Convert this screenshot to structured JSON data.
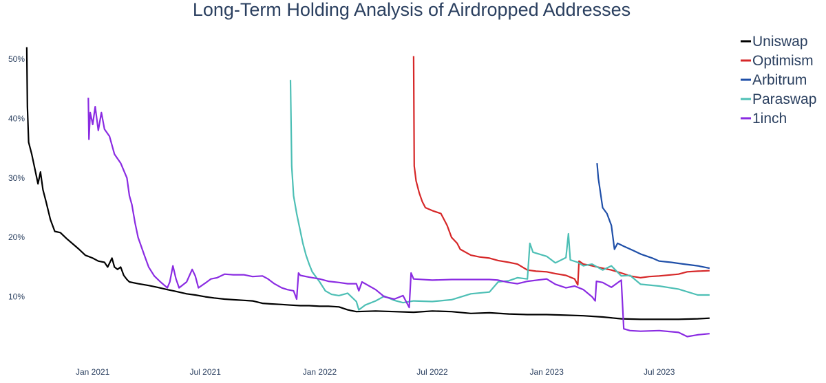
{
  "chart_data": {
    "type": "line",
    "title": "Long-Term Holding Analysis of Airdropped Addresses",
    "xlabel": "",
    "ylabel": "",
    "x_range": [
      "2020-09-16",
      "2023-10-20"
    ],
    "y_range": [
      0,
      53
    ],
    "y_unit": "%",
    "y_ticks": [
      "10%",
      "20%",
      "30%",
      "40%",
      "50%"
    ],
    "x_ticks": [
      "Jan 2021",
      "Jul 2021",
      "Jan 2022",
      "Jul 2022",
      "Jan 2023",
      "Jul 2023"
    ],
    "grid": false,
    "legend_position": "top-right",
    "series": [
      {
        "name": "Uniswap",
        "color": "#000000",
        "points": [
          [
            "2020-09-17",
            52
          ],
          [
            "2020-09-18",
            42
          ],
          [
            "2020-09-20",
            36
          ],
          [
            "2020-09-25",
            34
          ],
          [
            "2020-10-01",
            31
          ],
          [
            "2020-10-05",
            29
          ],
          [
            "2020-10-09",
            31
          ],
          [
            "2020-10-13",
            28
          ],
          [
            "2020-10-18",
            26
          ],
          [
            "2020-10-25",
            23
          ],
          [
            "2020-11-01",
            21
          ],
          [
            "2020-11-10",
            20.8
          ],
          [
            "2020-11-20",
            19.8
          ],
          [
            "2020-12-01",
            18.8
          ],
          [
            "2020-12-10",
            18
          ],
          [
            "2020-12-20",
            17
          ],
          [
            "2021-01-01",
            16.5
          ],
          [
            "2021-01-10",
            16
          ],
          [
            "2021-01-20",
            15.8
          ],
          [
            "2021-01-25",
            15
          ],
          [
            "2021-02-01",
            16.5
          ],
          [
            "2021-02-05",
            15
          ],
          [
            "2021-02-10",
            14.6
          ],
          [
            "2021-02-15",
            15
          ],
          [
            "2021-02-20",
            13.6
          ],
          [
            "2021-02-25",
            12.9
          ],
          [
            "2021-03-01",
            12.5
          ],
          [
            "2021-03-15",
            12.2
          ],
          [
            "2021-04-01",
            11.9
          ],
          [
            "2021-04-15",
            11.6
          ],
          [
            "2021-05-01",
            11.2
          ],
          [
            "2021-05-15",
            10.9
          ],
          [
            "2021-06-01",
            10.5
          ],
          [
            "2021-06-15",
            10.3
          ],
          [
            "2021-07-01",
            10
          ],
          [
            "2021-07-15",
            9.8
          ],
          [
            "2021-08-01",
            9.6
          ],
          [
            "2021-08-15",
            9.5
          ],
          [
            "2021-09-01",
            9.4
          ],
          [
            "2021-09-15",
            9.3
          ],
          [
            "2021-10-01",
            8.9
          ],
          [
            "2021-10-15",
            8.8
          ],
          [
            "2021-11-01",
            8.7
          ],
          [
            "2021-11-15",
            8.6
          ],
          [
            "2021-12-01",
            8.5
          ],
          [
            "2021-12-15",
            8.5
          ],
          [
            "2022-01-01",
            8.4
          ],
          [
            "2022-01-15",
            8.4
          ],
          [
            "2022-02-01",
            8.3
          ],
          [
            "2022-02-15",
            7.8
          ],
          [
            "2022-03-01",
            7.5
          ],
          [
            "2022-04-01",
            7.6
          ],
          [
            "2022-05-01",
            7.5
          ],
          [
            "2022-06-01",
            7.4
          ],
          [
            "2022-07-01",
            7.6
          ],
          [
            "2022-08-01",
            7.5
          ],
          [
            "2022-09-01",
            7.2
          ],
          [
            "2022-10-01",
            7.3
          ],
          [
            "2022-11-01",
            7.1
          ],
          [
            "2022-12-01",
            7
          ],
          [
            "2023-01-01",
            7
          ],
          [
            "2023-02-01",
            6.9
          ],
          [
            "2023-03-01",
            6.8
          ],
          [
            "2023-04-01",
            6.6
          ],
          [
            "2023-05-01",
            6.3
          ],
          [
            "2023-06-01",
            6.2
          ],
          [
            "2023-07-01",
            6.2
          ],
          [
            "2023-08-01",
            6.2
          ],
          [
            "2023-09-01",
            6.3
          ],
          [
            "2023-09-20",
            6.4
          ]
        ]
      },
      {
        "name": "Optimism",
        "color": "#d62728",
        "points": [
          [
            "2022-06-01",
            50.5
          ],
          [
            "2022-06-02",
            32
          ],
          [
            "2022-06-05",
            29.5
          ],
          [
            "2022-06-10",
            27.5
          ],
          [
            "2022-06-15",
            26
          ],
          [
            "2022-06-20",
            25
          ],
          [
            "2022-07-01",
            24.5
          ],
          [
            "2022-07-15",
            24
          ],
          [
            "2022-07-25",
            22
          ],
          [
            "2022-08-01",
            20
          ],
          [
            "2022-08-10",
            19
          ],
          [
            "2022-08-15",
            18
          ],
          [
            "2022-09-01",
            17
          ],
          [
            "2022-09-15",
            16.7
          ],
          [
            "2022-10-01",
            16.5
          ],
          [
            "2022-10-15",
            16.1
          ],
          [
            "2022-11-01",
            15.8
          ],
          [
            "2022-11-15",
            15.5
          ],
          [
            "2022-12-01",
            14.5
          ],
          [
            "2022-12-15",
            14.3
          ],
          [
            "2023-01-01",
            14.2
          ],
          [
            "2023-01-15",
            13.9
          ],
          [
            "2023-02-01",
            13.6
          ],
          [
            "2023-02-15",
            13
          ],
          [
            "2023-02-20",
            12
          ],
          [
            "2023-02-22",
            16
          ],
          [
            "2023-03-01",
            15.5
          ],
          [
            "2023-03-15",
            15.2
          ],
          [
            "2023-04-01",
            14.8
          ],
          [
            "2023-04-15",
            14.5
          ],
          [
            "2023-05-01",
            14
          ],
          [
            "2023-05-15",
            13.5
          ],
          [
            "2023-06-01",
            13.2
          ],
          [
            "2023-06-15",
            13.4
          ],
          [
            "2023-07-01",
            13.5
          ],
          [
            "2023-08-01",
            13.8
          ],
          [
            "2023-08-15",
            14.2
          ],
          [
            "2023-09-01",
            14.3
          ],
          [
            "2023-09-20",
            14.4
          ]
        ]
      },
      {
        "name": "Arbitrum",
        "color": "#1f4fa8",
        "points": [
          [
            "2023-03-23",
            32.5
          ],
          [
            "2023-03-25",
            30
          ],
          [
            "2023-04-01",
            25
          ],
          [
            "2023-04-08",
            24
          ],
          [
            "2023-04-15",
            22
          ],
          [
            "2023-04-20",
            18
          ],
          [
            "2023-04-25",
            19
          ],
          [
            "2023-05-05",
            18.5
          ],
          [
            "2023-05-20",
            17.8
          ],
          [
            "2023-06-01",
            17.2
          ],
          [
            "2023-06-20",
            16.5
          ],
          [
            "2023-07-01",
            16
          ],
          [
            "2023-07-20",
            15.8
          ],
          [
            "2023-08-10",
            15.5
          ],
          [
            "2023-09-01",
            15.2
          ],
          [
            "2023-09-20",
            14.8
          ]
        ]
      },
      {
        "name": "Paraswap",
        "color": "#4dbfb5",
        "points": [
          [
            "2021-11-15",
            46.5
          ],
          [
            "2021-11-17",
            32
          ],
          [
            "2021-11-20",
            27
          ],
          [
            "2021-11-25",
            24
          ],
          [
            "2021-12-01",
            21
          ],
          [
            "2021-12-05",
            19
          ],
          [
            "2021-12-10",
            17
          ],
          [
            "2021-12-15",
            15.5
          ],
          [
            "2021-12-20",
            14.2
          ],
          [
            "2022-01-01",
            12.5
          ],
          [
            "2022-01-10",
            11
          ],
          [
            "2022-01-20",
            10.4
          ],
          [
            "2022-02-01",
            10.2
          ],
          [
            "2022-02-15",
            10.6
          ],
          [
            "2022-03-01",
            9.2
          ],
          [
            "2022-03-05",
            7.8
          ],
          [
            "2022-03-15",
            8.6
          ],
          [
            "2022-04-01",
            9.3
          ],
          [
            "2022-04-15",
            10.1
          ],
          [
            "2022-05-01",
            9.4
          ],
          [
            "2022-05-15",
            9
          ],
          [
            "2022-06-01",
            9.3
          ],
          [
            "2022-07-01",
            9.2
          ],
          [
            "2022-08-01",
            9.5
          ],
          [
            "2022-09-01",
            10.5
          ],
          [
            "2022-10-01",
            10.8
          ],
          [
            "2022-10-15",
            12.5
          ],
          [
            "2022-11-01",
            12.7
          ],
          [
            "2022-11-15",
            13.2
          ],
          [
            "2022-12-01",
            13
          ],
          [
            "2022-12-05",
            19
          ],
          [
            "2022-12-10",
            17.5
          ],
          [
            "2023-01-01",
            16.8
          ],
          [
            "2023-01-15",
            15.7
          ],
          [
            "2023-02-01",
            16.6
          ],
          [
            "2023-02-05",
            20.6
          ],
          [
            "2023-02-08",
            16.2
          ],
          [
            "2023-02-20",
            15.8
          ],
          [
            "2023-03-01",
            15.2
          ],
          [
            "2023-03-15",
            15.5
          ],
          [
            "2023-04-01",
            14.5
          ],
          [
            "2023-04-15",
            15.2
          ],
          [
            "2023-05-01",
            13.5
          ],
          [
            "2023-05-15",
            13.6
          ],
          [
            "2023-06-01",
            12.1
          ],
          [
            "2023-07-01",
            11.8
          ],
          [
            "2023-08-01",
            11.3
          ],
          [
            "2023-09-01",
            10.3
          ],
          [
            "2023-09-20",
            10.3
          ]
        ]
      },
      {
        "name": "1inch",
        "color": "#8a2be2",
        "points": [
          [
            "2020-12-25",
            43.5
          ],
          [
            "2020-12-26",
            36.5
          ],
          [
            "2020-12-28",
            41
          ],
          [
            "2021-01-01",
            39
          ],
          [
            "2021-01-05",
            42
          ],
          [
            "2021-01-10",
            38
          ],
          [
            "2021-01-15",
            41
          ],
          [
            "2021-01-20",
            38.2
          ],
          [
            "2021-01-28",
            37
          ],
          [
            "2021-02-05",
            34
          ],
          [
            "2021-02-15",
            32.5
          ],
          [
            "2021-02-25",
            30
          ],
          [
            "2021-03-01",
            27
          ],
          [
            "2021-03-05",
            25.5
          ],
          [
            "2021-03-10",
            22.5
          ],
          [
            "2021-03-15",
            20
          ],
          [
            "2021-03-25",
            17
          ],
          [
            "2021-04-01",
            15
          ],
          [
            "2021-04-10",
            13.5
          ],
          [
            "2021-04-20",
            12.5
          ],
          [
            "2021-05-01",
            11.5
          ],
          [
            "2021-05-05",
            12.5
          ],
          [
            "2021-05-10",
            15.2
          ],
          [
            "2021-05-15",
            13
          ],
          [
            "2021-05-20",
            11.5
          ],
          [
            "2021-06-01",
            12.5
          ],
          [
            "2021-06-10",
            14.6
          ],
          [
            "2021-06-15",
            13.5
          ],
          [
            "2021-06-20",
            11.5
          ],
          [
            "2021-07-01",
            12.3
          ],
          [
            "2021-07-10",
            13
          ],
          [
            "2021-07-20",
            13.2
          ],
          [
            "2021-08-01",
            13.8
          ],
          [
            "2021-08-15",
            13.7
          ],
          [
            "2021-09-01",
            13.7
          ],
          [
            "2021-09-15",
            13.4
          ],
          [
            "2021-10-01",
            13.5
          ],
          [
            "2021-10-10",
            13
          ],
          [
            "2021-10-20",
            12.2
          ],
          [
            "2021-11-01",
            11.5
          ],
          [
            "2021-11-10",
            11.2
          ],
          [
            "2021-11-20",
            11
          ],
          [
            "2021-11-25",
            9.6
          ],
          [
            "2021-11-28",
            14
          ],
          [
            "2021-12-01",
            13.6
          ],
          [
            "2021-12-15",
            13.3
          ],
          [
            "2022-01-01",
            13
          ],
          [
            "2022-01-15",
            12.6
          ],
          [
            "2022-02-01",
            12.4
          ],
          [
            "2022-02-15",
            12.2
          ],
          [
            "2022-03-01",
            12.2
          ],
          [
            "2022-03-05",
            11
          ],
          [
            "2022-03-10",
            12.5
          ],
          [
            "2022-04-01",
            11.2
          ],
          [
            "2022-04-15",
            10
          ],
          [
            "2022-05-01",
            9.6
          ],
          [
            "2022-05-15",
            10.2
          ],
          [
            "2022-05-25",
            8.2
          ],
          [
            "2022-05-28",
            14
          ],
          [
            "2022-06-01",
            13
          ],
          [
            "2022-07-01",
            12.8
          ],
          [
            "2022-08-01",
            12.9
          ],
          [
            "2022-09-01",
            12.9
          ],
          [
            "2022-10-01",
            12.9
          ],
          [
            "2022-10-15",
            12.8
          ],
          [
            "2022-11-01",
            12.4
          ],
          [
            "2022-11-15",
            12.2
          ],
          [
            "2022-12-01",
            12.6
          ],
          [
            "2023-01-01",
            13
          ],
          [
            "2023-01-15",
            12.1
          ],
          [
            "2023-02-01",
            11.5
          ],
          [
            "2023-02-15",
            11.8
          ],
          [
            "2023-03-01",
            11.2
          ],
          [
            "2023-03-15",
            10
          ],
          [
            "2023-03-20",
            9.3
          ],
          [
            "2023-03-22",
            12.6
          ],
          [
            "2023-04-01",
            12.4
          ],
          [
            "2023-04-15",
            11.6
          ],
          [
            "2023-05-01",
            12.8
          ],
          [
            "2023-05-05",
            4.6
          ],
          [
            "2023-05-15",
            4.3
          ],
          [
            "2023-06-01",
            4.2
          ],
          [
            "2023-07-01",
            4.3
          ],
          [
            "2023-08-01",
            4
          ],
          [
            "2023-08-15",
            3.3
          ],
          [
            "2023-09-01",
            3.6
          ],
          [
            "2023-09-20",
            3.8
          ]
        ]
      }
    ]
  }
}
